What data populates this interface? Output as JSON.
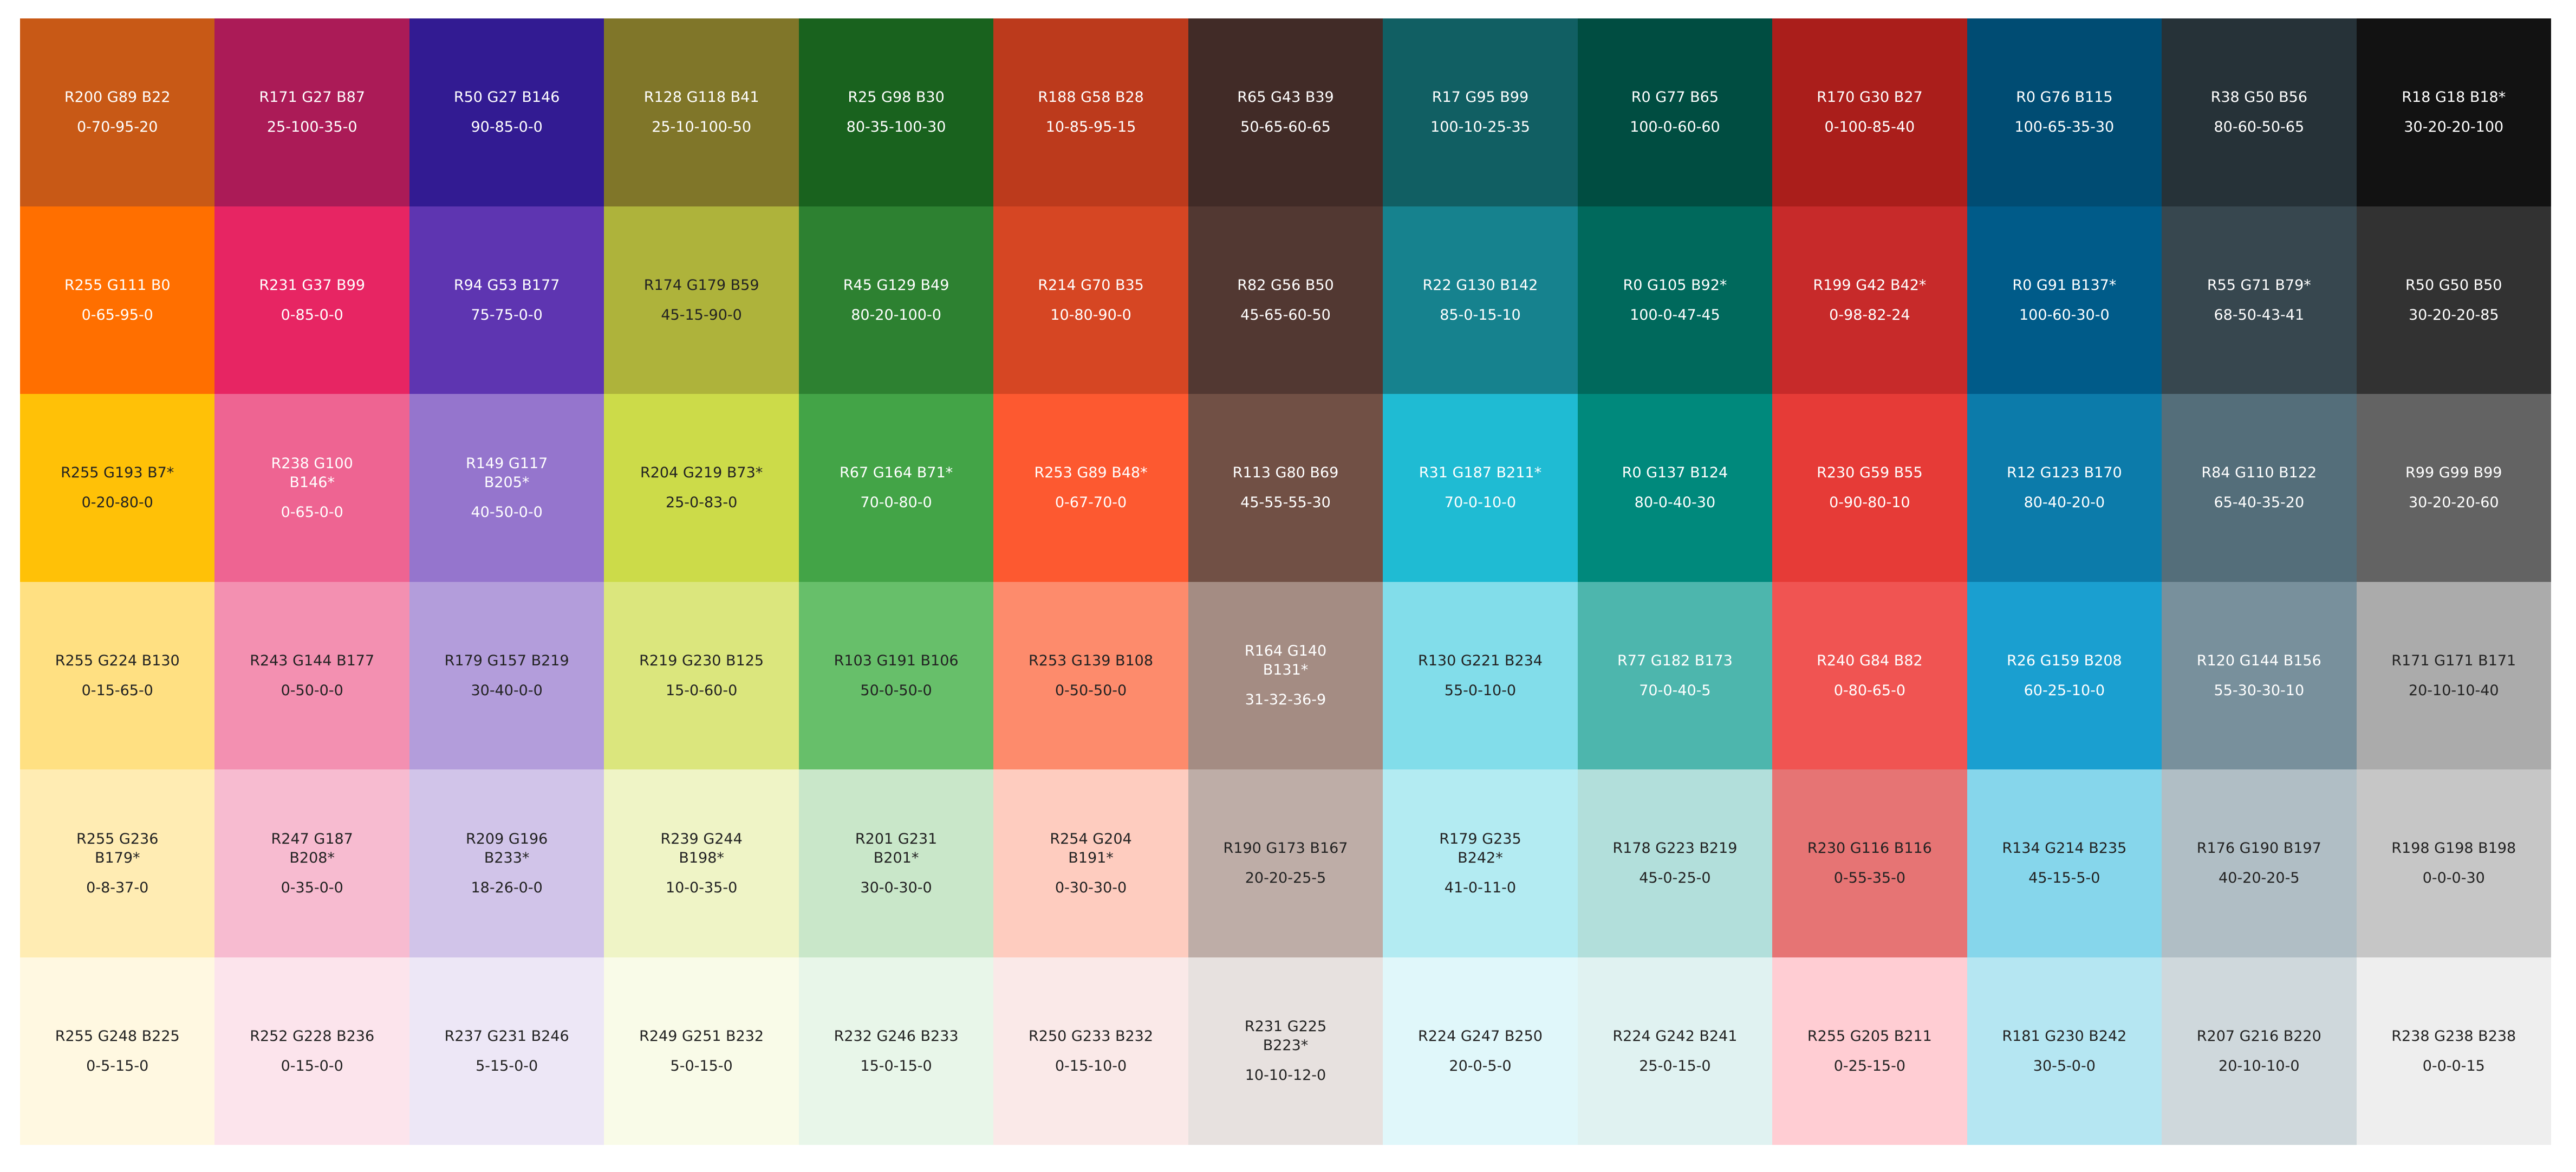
{
  "swatches": {
    "rows": [
      [
        {
          "rgb": "R200 G89 B22",
          "cmyk": "0-70-95-20",
          "color": "rgb(200,89,22)"
        },
        {
          "rgb": "R171 G27 B87",
          "cmyk": "25-100-35-0",
          "color": "rgb(171,27,87)"
        },
        {
          "rgb": "R50 G27 B146",
          "cmyk": "90-85-0-0",
          "color": "rgb(50,27,146)"
        },
        {
          "rgb": "R128 G118 B41",
          "cmyk": "25-10-100-50",
          "color": "rgb(128,118,41)"
        },
        {
          "rgb": "R25 G98 B30",
          "cmyk": "80-35-100-30",
          "color": "rgb(25,98,30)"
        },
        {
          "rgb": "R188 G58 B28",
          "cmyk": "10-85-95-15",
          "color": "rgb(188,58,28)"
        },
        {
          "rgb": "R65 G43 B39",
          "cmyk": "50-65-60-65",
          "color": "rgb(65,43,39)"
        },
        {
          "rgb": "R17 G95 B99",
          "cmyk": "100-10-25-35",
          "color": "rgb(17,95,99)"
        },
        {
          "rgb": "R0 G77 B65",
          "cmyk": "100-0-60-60",
          "color": "rgb(0,77,65)"
        },
        {
          "rgb": "R170 G30 B27",
          "cmyk": "0-100-85-40",
          "color": "rgb(170,30,27)"
        },
        {
          "rgb": "R0 G76 B115",
          "cmyk": "100-65-35-30",
          "color": "rgb(0,76,115)"
        },
        {
          "rgb": "R38 G50 B56",
          "cmyk": "80-60-50-65",
          "color": "rgb(38,50,56)"
        },
        {
          "rgb": "R18 G18 B18*",
          "cmyk": "30-20-20-100",
          "color": "rgb(18,18,18)"
        }
      ],
      [
        {
          "rgb": "R255 G111 B0",
          "cmyk": "0-65-95-0",
          "color": "rgb(255,111,0)"
        },
        {
          "rgb": "R231 G37 B99",
          "cmyk": "0-85-0-0",
          "color": "rgb(231,37,99)"
        },
        {
          "rgb": "R94 G53 B177",
          "cmyk": "75-75-0-0",
          "color": "rgb(94,53,177)"
        },
        {
          "rgb": "R174 G179 B59",
          "cmyk": "45-15-90-0",
          "color": "rgb(174,179,59)"
        },
        {
          "rgb": "R45 G129 B49",
          "cmyk": "80-20-100-0",
          "color": "rgb(45,129,49)"
        },
        {
          "rgb": "R214 G70 B35",
          "cmyk": "10-80-90-0",
          "color": "rgb(214,70,35)"
        },
        {
          "rgb": "R82 G56 B50",
          "cmyk": "45-65-60-50",
          "color": "rgb(82,56,50)"
        },
        {
          "rgb": "R22 G130 B142",
          "cmyk": "85-0-15-10",
          "color": "rgb(22,130,142)"
        },
        {
          "rgb": "R0 G105 B92*",
          "cmyk": "100-0-47-45",
          "color": "rgb(0,105,92)"
        },
        {
          "rgb": "R199 G42 B42*",
          "cmyk": "0-98-82-24",
          "color": "rgb(199,42,42)"
        },
        {
          "rgb": "R0 G91 B137*",
          "cmyk": "100-60-30-0",
          "color": "rgb(0,91,137)"
        },
        {
          "rgb": "R55 G71 B79*",
          "cmyk": "68-50-43-41",
          "color": "rgb(55,71,79)"
        },
        {
          "rgb": "R50 G50 B50",
          "cmyk": "30-20-20-85",
          "color": "rgb(50,50,50)"
        }
      ],
      [
        {
          "rgb": "R255 G193 B7*",
          "cmyk": "0-20-80-0",
          "color": "rgb(255,193,7)"
        },
        {
          "rgb": "R238 G100 B146*",
          "cmyk": "0-65-0-0",
          "color": "rgb(238,100,146)"
        },
        {
          "rgb": "R149 G117 B205*",
          "cmyk": "40-50-0-0",
          "color": "rgb(149,117,205)"
        },
        {
          "rgb": "R204 G219 B73*",
          "cmyk": "25-0-83-0",
          "color": "rgb(204,219,73)"
        },
        {
          "rgb": "R67 G164 B71*",
          "cmyk": "70-0-80-0",
          "color": "rgb(67,164,71)"
        },
        {
          "rgb": "R253 G89 B48*",
          "cmyk": "0-67-70-0",
          "color": "rgb(253,89,48)"
        },
        {
          "rgb": "R113 G80 B69",
          "cmyk": "45-55-55-30",
          "color": "rgb(113,80,69)"
        },
        {
          "rgb": "R31 G187 B211*",
          "cmyk": "70-0-10-0",
          "color": "rgb(31,187,211)"
        },
        {
          "rgb": "R0 G137 B124",
          "cmyk": "80-0-40-30",
          "color": "rgb(0,137,124)"
        },
        {
          "rgb": "R230 G59 B55",
          "cmyk": "0-90-80-10",
          "color": "rgb(230,59,55)"
        },
        {
          "rgb": "R12 G123 B170",
          "cmyk": "80-40-20-0",
          "color": "rgb(12,123,170)"
        },
        {
          "rgb": "R84 G110 B122",
          "cmyk": "65-40-35-20",
          "color": "rgb(84,110,122)"
        },
        {
          "rgb": "R99 G99 B99",
          "cmyk": "30-20-20-60",
          "color": "rgb(99,99,99)"
        }
      ],
      [
        {
          "rgb": "R255 G224 B130",
          "cmyk": "0-15-65-0",
          "color": "rgb(255,224,130)"
        },
        {
          "rgb": "R243 G144 B177",
          "cmyk": "0-50-0-0",
          "color": "rgb(243,144,177)"
        },
        {
          "rgb": "R179 G157 B219",
          "cmyk": "30-40-0-0",
          "color": "rgb(179,157,219)"
        },
        {
          "rgb": "R219 G230 B125",
          "cmyk": "15-0-60-0",
          "color": "rgb(219,230,125)"
        },
        {
          "rgb": "R103 G191 B106",
          "cmyk": "50-0-50-0",
          "color": "rgb(103,191,106)"
        },
        {
          "rgb": "R253 G139 B108",
          "cmyk": "0-50-50-0",
          "color": "rgb(253,139,108)"
        },
        {
          "rgb": "R164 G140 B131*",
          "cmyk": "31-32-36-9",
          "color": "rgb(164,140,131)"
        },
        {
          "rgb": "R130 G221 B234",
          "cmyk": "55-0-10-0",
          "color": "rgb(130,221,234)"
        },
        {
          "rgb": "R77 G182 B173",
          "cmyk": "70-0-40-5",
          "color": "rgb(77,182,173)"
        },
        {
          "rgb": "R240 G84 B82",
          "cmyk": "0-80-65-0",
          "color": "rgb(240,84,82)"
        },
        {
          "rgb": "R26 G159 B208",
          "cmyk": "60-25-10-0",
          "color": "rgb(26,159,208)"
        },
        {
          "rgb": "R120 G144 B156",
          "cmyk": "55-30-30-10",
          "color": "rgb(120,144,156)"
        },
        {
          "rgb": "R171 G171 B171",
          "cmyk": "20-10-10-40",
          "color": "rgb(171,171,171)"
        }
      ],
      [
        {
          "rgb": "R255 G236 B179*",
          "cmyk": "0-8-37-0",
          "color": "rgb(255,236,179)"
        },
        {
          "rgb": "R247 G187 B208*",
          "cmyk": "0-35-0-0",
          "color": "rgb(247,187,208)"
        },
        {
          "rgb": "R209 G196 B233*",
          "cmyk": "18-26-0-0",
          "color": "rgb(209,196,233)"
        },
        {
          "rgb": "R239 G244 B198*",
          "cmyk": "10-0-35-0",
          "color": "rgb(239,244,198)"
        },
        {
          "rgb": "R201 G231 B201*",
          "cmyk": "30-0-30-0",
          "color": "rgb(201,231,201)"
        },
        {
          "rgb": "R254 G204 B191*",
          "cmyk": "0-30-30-0",
          "color": "rgb(254,204,191)"
        },
        {
          "rgb": "R190 G173 B167",
          "cmyk": "20-20-25-5",
          "color": "rgb(190,173,167)"
        },
        {
          "rgb": "R179 G235 B242*",
          "cmyk": "41-0-11-0",
          "color": "rgb(179,235,242)"
        },
        {
          "rgb": "R178 G223 B219",
          "cmyk": "45-0-25-0",
          "color": "rgb(178,223,219)"
        },
        {
          "rgb": "R230 G116 B116",
          "cmyk": "0-55-35-0",
          "color": "rgb(230,116,116)"
        },
        {
          "rgb": "R134 G214 B235",
          "cmyk": "45-15-5-0",
          "color": "rgb(134,214,235)"
        },
        {
          "rgb": "R176 G190 B197",
          "cmyk": "40-20-20-5",
          "color": "rgb(176,190,197)"
        },
        {
          "rgb": "R198 G198 B198",
          "cmyk": "0-0-0-30",
          "color": "rgb(198,198,198)"
        }
      ],
      [
        {
          "rgb": "R255 G248 B225",
          "cmyk": "0-5-15-0",
          "color": "rgb(255,248,225)"
        },
        {
          "rgb": "R252 G228 B236",
          "cmyk": "0-15-0-0",
          "color": "rgb(252,228,236)"
        },
        {
          "rgb": "R237 G231 B246",
          "cmyk": "5-15-0-0",
          "color": "rgb(237,231,246)"
        },
        {
          "rgb": "R249 G251 B232",
          "cmyk": "5-0-15-0",
          "color": "rgb(249,251,232)"
        },
        {
          "rgb": "R232 G246 B233",
          "cmyk": "15-0-15-0",
          "color": "rgb(232,246,233)"
        },
        {
          "rgb": "R250 G233 B232",
          "cmyk": "0-15-10-0",
          "color": "rgb(250,233,232)"
        },
        {
          "rgb": "R231 G225 B223*",
          "cmyk": "10-10-12-0",
          "color": "rgb(231,225,223)"
        },
        {
          "rgb": "R224 G247 B250",
          "cmyk": "20-0-5-0",
          "color": "rgb(224,247,250)"
        },
        {
          "rgb": "R224 G242 B241",
          "cmyk": "25-0-15-0",
          "color": "rgb(224,242,241)"
        },
        {
          "rgb": "R255 G205 B211",
          "cmyk": "0-25-15-0",
          "color": "rgb(255,205,211)"
        },
        {
          "rgb": "R181 G230 B242",
          "cmyk": "30-5-0-0",
          "color": "rgb(181,230,242)"
        },
        {
          "rgb": "R207 G216 B220",
          "cmyk": "20-10-10-0",
          "color": "rgb(207,216,220)"
        },
        {
          "rgb": "R238 G238 B238",
          "cmyk": "0-0-0-15",
          "color": "rgb(238,238,238)"
        }
      ]
    ]
  }
}
